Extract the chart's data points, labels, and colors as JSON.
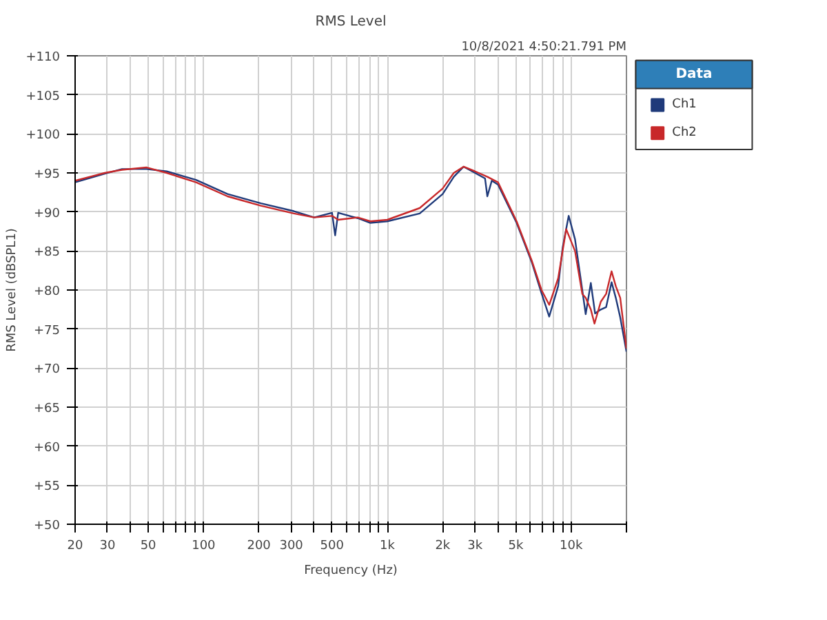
{
  "chart_data": {
    "type": "line",
    "title": "RMS Level",
    "xlabel": "Frequency (Hz)",
    "ylabel": "RMS Level (dBSPL1)",
    "legend_title": "Data",
    "annotations": [
      "10/8/2021 4:50:21.791 PM"
    ],
    "log": "x",
    "grid": true,
    "legend": "top right",
    "line_style": "solid",
    "xlim": [
      20,
      20000
    ],
    "ylim": [
      50,
      110
    ],
    "xticks": [
      20,
      30,
      {
        "value": 40,
        "label": null
      },
      50,
      {
        "value": 60,
        "label": null
      },
      {
        "value": 70,
        "label": null
      },
      {
        "value": 80,
        "label": null
      },
      {
        "value": 90,
        "label": null
      },
      100,
      200,
      300,
      {
        "value": 400,
        "label": null
      },
      500,
      {
        "value": 600,
        "label": null
      },
      {
        "value": 700,
        "label": null
      },
      {
        "value": 800,
        "label": null
      },
      {
        "value": 900,
        "label": null
      },
      {
        "value": 1000,
        "label": "1k"
      },
      {
        "value": 2000,
        "label": "2k"
      },
      {
        "value": 3000,
        "label": "3k"
      },
      {
        "value": 4000,
        "label": null
      },
      {
        "value": 5000,
        "label": "5k"
      },
      {
        "value": 6000,
        "label": null
      },
      {
        "value": 7000,
        "label": null
      },
      {
        "value": 8000,
        "label": null
      },
      {
        "value": 9000,
        "label": null
      },
      {
        "value": 10000,
        "label": "10k"
      },
      {
        "value": 20000,
        "label": null
      }
    ],
    "yticks": [
      {
        "value": 50,
        "label": "+50"
      },
      {
        "value": 55,
        "label": "+55"
      },
      {
        "value": 60,
        "label": "+60"
      },
      {
        "value": 65,
        "label": "+65"
      },
      {
        "value": 70,
        "label": "+70"
      },
      {
        "value": 75,
        "label": "+75"
      },
      {
        "value": 80,
        "label": "+80"
      },
      {
        "value": 85,
        "label": "+85"
      },
      {
        "value": 90,
        "label": "+90"
      },
      {
        "value": 95,
        "label": "+95"
      },
      {
        "value": 100,
        "label": "+100"
      },
      {
        "value": 105,
        "label": "+105"
      },
      {
        "value": 110,
        "label": "+110"
      }
    ],
    "series": [
      {
        "name": "Ch1",
        "color": "#1f3a7a",
        "x": [
          20,
          29,
          36,
          49,
          63,
          91,
          135,
          205,
          310,
          400,
          500,
          520,
          540,
          690,
          808,
          1000,
          1500,
          2000,
          2300,
          2600,
          3000,
          3400,
          3500,
          3700,
          4000,
          5050,
          6100,
          6900,
          7600,
          8500,
          9000,
          9700,
          10500,
          11500,
          12000,
          12800,
          13500,
          14500,
          15500,
          16600,
          17500,
          18500,
          20000
        ],
        "values": [
          93.8,
          94.9,
          95.5,
          95.5,
          95.2,
          94.1,
          92.3,
          91.1,
          90.1,
          89.3,
          89.9,
          87.0,
          89.9,
          89.2,
          88.6,
          88.8,
          89.8,
          92.3,
          94.5,
          95.8,
          95.0,
          94.3,
          92.0,
          94.0,
          93.5,
          88.6,
          83.6,
          79.6,
          76.6,
          80.5,
          85.5,
          89.5,
          86.5,
          80.0,
          76.9,
          80.9,
          77.0,
          77.5,
          77.8,
          81.0,
          79.0,
          76.5,
          72.1
        ]
      },
      {
        "name": "Ch2",
        "color": "#c8282a",
        "x": [
          20,
          29,
          36,
          49,
          63,
          91,
          135,
          205,
          310,
          400,
          500,
          540,
          690,
          808,
          1000,
          1500,
          2000,
          2300,
          2600,
          3000,
          3500,
          4000,
          5050,
          6100,
          6900,
          7600,
          8500,
          9400,
          10500,
          11500,
          12000,
          12800,
          13400,
          14500,
          15500,
          16600,
          17500,
          18500,
          20000
        ],
        "values": [
          94.0,
          95.0,
          95.4,
          95.7,
          95.0,
          93.8,
          92.0,
          90.8,
          89.8,
          89.3,
          89.5,
          89.0,
          89.3,
          88.8,
          89.0,
          90.5,
          93.0,
          95.0,
          95.8,
          95.2,
          94.5,
          93.8,
          88.8,
          83.8,
          80.0,
          78.1,
          81.5,
          87.8,
          85.0,
          79.5,
          79.0,
          77.5,
          75.7,
          78.5,
          79.5,
          82.4,
          80.5,
          79.0,
          72.5
        ]
      }
    ]
  }
}
